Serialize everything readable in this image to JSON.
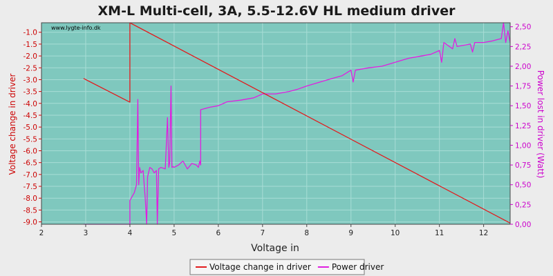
{
  "chart_data": {
    "type": "line",
    "title": "XM-L Multi-cell, 3A, 5.5-12.6V HL medium driver",
    "watermark": "www.lygte-info.dk",
    "xlabel": "Voltage in",
    "ylabel_left": "Voltage change in driver",
    "ylabel_right": "Power lost in driver (Watt)",
    "xlim": [
      2,
      12.6
    ],
    "ylim_left": [
      -9.1,
      -0.6
    ],
    "ylim_right": [
      0,
      2.55
    ],
    "x_ticks": [
      "2",
      "3",
      "4",
      "5",
      "6",
      "7",
      "8",
      "9",
      "10",
      "11",
      "12"
    ],
    "y_left_ticks": [
      "-1.0",
      "-1.5",
      "-2.0",
      "-2.5",
      "-3.0",
      "-3.5",
      "-4.0",
      "-4.5",
      "-5.0",
      "-5.5",
      "-6.0",
      "-6.5",
      "-7.0",
      "-7.5",
      "-8.0",
      "-8.5",
      "-9.0"
    ],
    "y_right_ticks": [
      "0,00",
      "0,25",
      "0,50",
      "0,75",
      "1,00",
      "1,25",
      "1,50",
      "1,75",
      "2,00",
      "2,25",
      "2,50"
    ],
    "grid": true,
    "legend": "bottom",
    "colors": {
      "plot_bg": "#7fc8be",
      "page_bg": "#ececec",
      "voltage": "#e31a1c",
      "power": "#e01ee0",
      "left_axis": "#cc0000",
      "right_axis": "#cc00cc"
    },
    "series": [
      {
        "name": "Voltage change in driver",
        "axis": "left",
        "x": [
          2.95,
          4.0,
          4.0,
          12.6
        ],
        "y": [
          -2.95,
          -3.95,
          -0.6,
          -9.05
        ]
      },
      {
        "name": "Power driver",
        "axis": "right",
        "x": [
          2.95,
          4.0,
          4.0,
          4.1,
          4.15,
          4.18,
          4.2,
          4.22,
          4.25,
          4.3,
          4.35,
          4.38,
          4.4,
          4.45,
          4.5,
          4.55,
          4.6,
          4.62,
          4.65,
          4.7,
          4.8,
          4.85,
          4.88,
          4.9,
          4.93,
          4.95,
          4.98,
          5.0,
          5.1,
          5.2,
          5.3,
          5.4,
          5.5,
          5.55,
          5.58,
          5.6,
          5.6,
          5.8,
          6.0,
          6.2,
          6.5,
          6.8,
          7.0,
          7.3,
          7.6,
          7.8,
          8.0,
          8.3,
          8.6,
          8.8,
          9.0,
          9.05,
          9.1,
          9.4,
          9.7,
          10.0,
          10.3,
          10.5,
          10.8,
          11.0,
          11.05,
          11.1,
          11.3,
          11.35,
          11.4,
          11.7,
          11.75,
          11.8,
          12.0,
          12.2,
          12.4,
          12.45,
          12.5,
          12.55,
          12.6
        ],
        "y": [
          0.0,
          0.0,
          0.3,
          0.4,
          0.5,
          1.58,
          0.5,
          0.72,
          0.65,
          0.68,
          0.3,
          0.0,
          0.6,
          0.72,
          0.7,
          0.65,
          0.68,
          0.0,
          0.7,
          0.72,
          0.7,
          1.35,
          0.72,
          0.78,
          1.75,
          0.72,
          0.73,
          0.72,
          0.75,
          0.8,
          0.7,
          0.77,
          0.75,
          0.72,
          0.8,
          0.75,
          1.45,
          1.48,
          1.5,
          1.55,
          1.57,
          1.6,
          1.65,
          1.65,
          1.68,
          1.71,
          1.75,
          1.8,
          1.85,
          1.88,
          1.95,
          1.8,
          1.95,
          1.98,
          2.0,
          2.05,
          2.1,
          2.12,
          2.15,
          2.2,
          2.05,
          2.3,
          2.22,
          2.35,
          2.25,
          2.28,
          2.18,
          2.3,
          2.3,
          2.32,
          2.35,
          2.55,
          2.3,
          2.45,
          2.3
        ]
      }
    ]
  }
}
